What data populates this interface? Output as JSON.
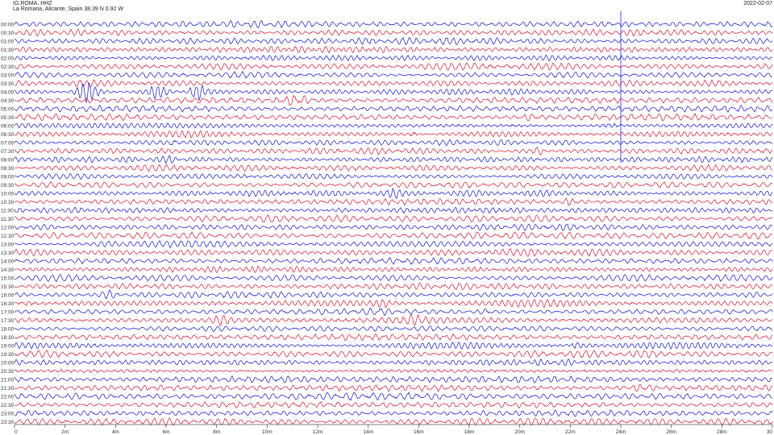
{
  "header": {
    "station": "IG.ROMA..HHZ",
    "location": "La Romana, Alicante, Spain  38.39 N 0.92 W",
    "date": "2022-02-07"
  },
  "colors": {
    "trace_a": "#1010e0",
    "trace_b": "#e01030",
    "axis": "#555555",
    "marker": "#2020ff"
  },
  "chart_data": {
    "type": "line",
    "title": "",
    "xlabel": "",
    "ylabel": "",
    "xlim": [
      0,
      30
    ],
    "row_labels": [
      "00:00",
      "00:30",
      "01:00",
      "01:30",
      "02:00",
      "02:30",
      "03:00",
      "03:30",
      "04:00",
      "04:30",
      "05:00",
      "05:30",
      "06:00",
      "06:30",
      "07:00",
      "07:30",
      "08:00",
      "08:30",
      "09:00",
      "09:30",
      "10:00",
      "10:30",
      "11:00",
      "11:30",
      "12:00",
      "12:30",
      "13:00",
      "13:30",
      "14:00",
      "14:30",
      "15:00",
      "15:30",
      "16:00",
      "16:30",
      "17:00",
      "17:30",
      "18:00",
      "18:30",
      "19:00",
      "19:30",
      "20:00",
      "20:30",
      "21:00",
      "21:30",
      "22:00",
      "22:30",
      "23:00",
      "23:30"
    ],
    "x_ticks": [
      {
        "v": 0,
        "label": "0"
      },
      {
        "v": 2,
        "label": "2m"
      },
      {
        "v": 4,
        "label": "4m"
      },
      {
        "v": 6,
        "label": "6m"
      },
      {
        "v": 8,
        "label": "8m"
      },
      {
        "v": 10,
        "label": "10m"
      },
      {
        "v": 12,
        "label": "12m"
      },
      {
        "v": 14,
        "label": "14m"
      },
      {
        "v": 16,
        "label": "16m"
      },
      {
        "v": 18,
        "label": "18m"
      },
      {
        "v": 20,
        "label": "20m"
      },
      {
        "v": 22,
        "label": "22m"
      },
      {
        "v": 24,
        "label": "24m"
      },
      {
        "v": 26,
        "label": "26m"
      },
      {
        "v": 28,
        "label": "28m"
      },
      {
        "v": 30,
        "label": "30"
      }
    ],
    "time_marker_minute": 24,
    "time_marker_rows": [
      0,
      16
    ],
    "events": [
      {
        "row": 8,
        "minute": 2.9,
        "amp": 3.6,
        "width": 0.7
      },
      {
        "row": 8,
        "minute": 5.7,
        "amp": 2.4,
        "width": 0.6
      },
      {
        "row": 8,
        "minute": 7.2,
        "amp": 3.4,
        "width": 0.5
      },
      {
        "row": 9,
        "minute": 11.1,
        "amp": 1.6,
        "width": 0.9
      },
      {
        "row": 11,
        "minute": 20.4,
        "amp": 0.9,
        "width": 0.4
      },
      {
        "row": 12,
        "minute": 23.6,
        "amp": 1.1,
        "width": 0.6
      },
      {
        "row": 13,
        "minute": 15.8,
        "amp": 1.0,
        "width": 0.4
      },
      {
        "row": 14,
        "minute": 6.2,
        "amp": 1.3,
        "width": 0.5
      },
      {
        "row": 15,
        "minute": 20.8,
        "amp": 1.2,
        "width": 0.4
      },
      {
        "row": 15,
        "minute": 29.6,
        "amp": 1.2,
        "width": 0.5
      },
      {
        "row": 16,
        "minute": 6.2,
        "amp": 1.2,
        "width": 0.4
      },
      {
        "row": 18,
        "minute": 8.9,
        "amp": 1.1,
        "width": 0.5
      },
      {
        "row": 20,
        "minute": 15.0,
        "amp": 1.0,
        "width": 0.5
      },
      {
        "row": 21,
        "minute": 22.0,
        "amp": 1.0,
        "width": 0.5
      },
      {
        "row": 26,
        "minute": 3.6,
        "amp": 0.9,
        "width": 0.5
      },
      {
        "row": 32,
        "minute": 3.8,
        "amp": 1.1,
        "width": 0.5
      },
      {
        "row": 33,
        "minute": 0.6,
        "amp": 1.2,
        "width": 0.6
      },
      {
        "row": 33,
        "minute": 8.0,
        "amp": 1.0,
        "width": 0.5
      },
      {
        "row": 33,
        "minute": 14.6,
        "amp": 1.2,
        "width": 0.6
      },
      {
        "row": 34,
        "minute": 14.3,
        "amp": 1.2,
        "width": 0.6
      },
      {
        "row": 34,
        "minute": 18.7,
        "amp": 1.1,
        "width": 0.4
      },
      {
        "row": 35,
        "minute": 8.2,
        "amp": 1.2,
        "width": 0.6
      },
      {
        "row": 35,
        "minute": 15.8,
        "amp": 1.0,
        "width": 0.5
      },
      {
        "row": 36,
        "minute": 23.8,
        "amp": 1.1,
        "width": 0.5
      },
      {
        "row": 38,
        "minute": 22.3,
        "amp": 1.3,
        "width": 0.6
      },
      {
        "row": 43,
        "minute": 24.9,
        "amp": 1.0,
        "width": 0.6
      }
    ]
  }
}
